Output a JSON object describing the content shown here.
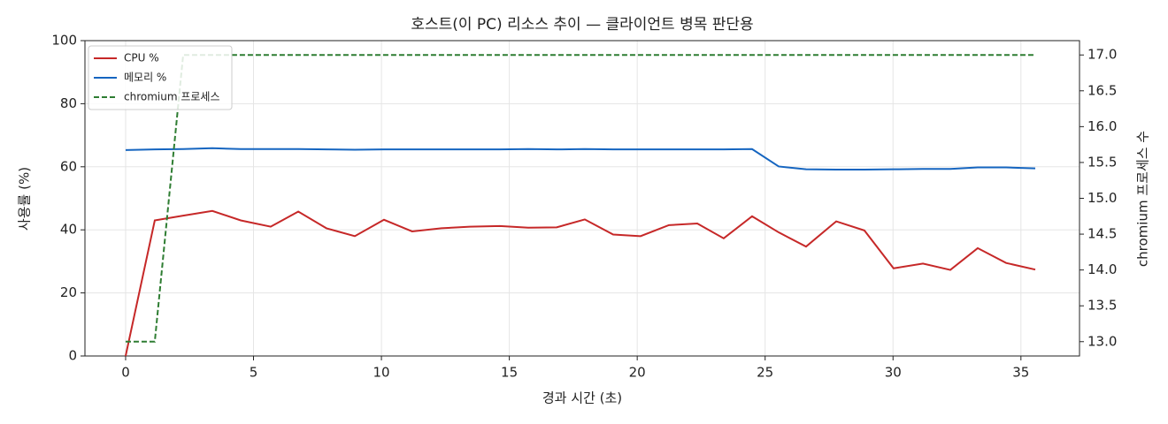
{
  "chart_data": {
    "type": "line",
    "title": "호스트(이 PC) 리소스 추이 — 클라이언트 병목 판단용",
    "x_label": "경과 시간 (초)",
    "y_label": "사용률 (%)",
    "y2_label": "chromium 프로세스 수",
    "x": [
      0,
      1.14,
      2.25,
      3.39,
      4.5,
      5.67,
      6.75,
      7.85,
      8.96,
      10.1,
      11.2,
      12.35,
      13.46,
      14.63,
      15.74,
      16.85,
      17.95,
      19.06,
      20.13,
      21.24,
      22.35,
      23.38,
      24.49,
      25.53,
      26.6,
      27.78,
      28.88,
      30.02,
      31.17,
      32.24,
      33.31,
      34.42,
      35.56
    ],
    "series": [
      {
        "name": "CPU %",
        "color": "#c62828",
        "dash": false,
        "axis": "y",
        "values": [
          0,
          43,
          44.5,
          46,
          43,
          41,
          45.8,
          40.5,
          38,
          43.2,
          39.5,
          40.5,
          41,
          41.2,
          40.7,
          40.8,
          43.3,
          38.5,
          38,
          41.5,
          42,
          37.3,
          44.3,
          39.2,
          34.7,
          42.7,
          39.8,
          27.8,
          29.3,
          27.3,
          34.2,
          29.5,
          27.4
        ]
      },
      {
        "name": "메모리 %",
        "color": "#1565c0",
        "dash": false,
        "axis": "y",
        "values": [
          65.3,
          65.5,
          65.6,
          65.9,
          65.6,
          65.6,
          65.6,
          65.5,
          65.4,
          65.5,
          65.5,
          65.5,
          65.5,
          65.5,
          65.6,
          65.5,
          65.6,
          65.5,
          65.5,
          65.5,
          65.5,
          65.5,
          65.6,
          60.1,
          59.2,
          59.1,
          59.1,
          59.2,
          59.3,
          59.3,
          59.8,
          59.8,
          59.5
        ]
      },
      {
        "name": "chromium 프로세스",
        "color": "#2e7d32",
        "dash": true,
        "axis": "y2",
        "values": [
          13,
          13,
          17,
          17,
          17,
          17,
          17,
          17,
          17,
          17,
          17,
          17,
          17,
          17,
          17,
          17,
          17,
          17,
          17,
          17,
          17,
          17,
          17,
          17,
          17,
          17,
          17,
          17,
          17,
          17,
          17,
          17,
          17
        ]
      }
    ],
    "xlim": [
      -1.59,
      37.29
    ],
    "xticks": [
      0,
      5,
      10,
      15,
      20,
      25,
      30,
      35
    ],
    "ylim": [
      0,
      100
    ],
    "yticks": [
      0,
      20,
      40,
      60,
      80,
      100
    ],
    "y2lim": [
      12.8,
      17.2
    ],
    "y2ticks": [
      {
        "value": 13,
        "label": "13.0"
      },
      13.5,
      {
        "value": 14,
        "label": "14.0"
      },
      14.5,
      {
        "value": 15,
        "label": "15.0"
      },
      15.5,
      {
        "value": 16,
        "label": "16.0"
      },
      16.5,
      {
        "value": 17,
        "label": "17.0"
      }
    ],
    "grid": true,
    "legend": "upper-left"
  }
}
